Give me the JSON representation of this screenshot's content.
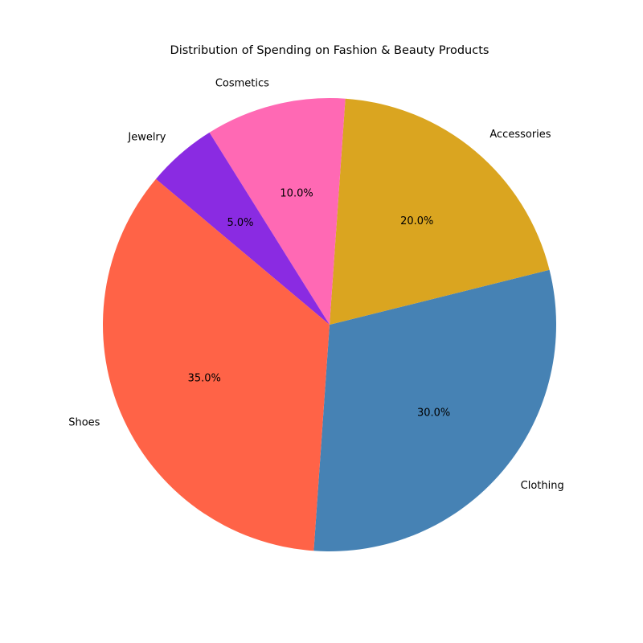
{
  "chart_data": {
    "type": "pie",
    "title": "Distribution of Spending on Fashion & Beauty Products",
    "categories": [
      "Clothing",
      "Accessories",
      "Cosmetics",
      "Jewelry",
      "Shoes"
    ],
    "values": [
      30.0,
      20.0,
      10.0,
      5.0,
      35.0
    ],
    "value_labels": [
      "30.0%",
      "20.0%",
      "10.0%",
      "5.0%",
      "35.0%"
    ],
    "colors": [
      "#4682B4",
      "#DAA520",
      "#FF69B4",
      "#8A2BE2",
      "#FF6347"
    ],
    "start_angle_deg": -94,
    "direction": "counterclockwise",
    "legend": "none"
  }
}
